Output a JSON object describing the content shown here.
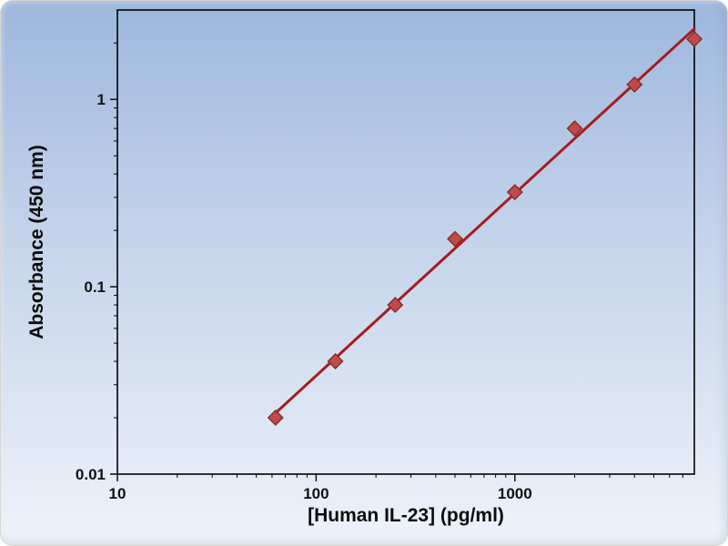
{
  "chart_data": {
    "type": "scatter",
    "xlabel": "[Human IL-23] (pg/ml)",
    "ylabel": "Absorbance (450 nm)",
    "x_scale": "log",
    "y_scale": "log",
    "xlim": [
      10,
      8000
    ],
    "ylim": [
      0.01,
      3
    ],
    "x_ticks": [
      10,
      100,
      1000
    ],
    "y_ticks": [
      0.01,
      0.1,
      1
    ],
    "x": [
      62.5,
      125,
      250,
      500,
      1000,
      2000,
      4000,
      8000
    ],
    "y": [
      0.02,
      0.04,
      0.08,
      0.18,
      0.32,
      0.7,
      1.2,
      2.1
    ],
    "marker": "diamond",
    "marker_color": "#bf4a47",
    "marker_edge_color": "#822e2b",
    "line_color": "#a61c20",
    "trendline": true,
    "grid": false,
    "legend": "none",
    "plot_border_color": "#000000",
    "background_gradient": [
      "#9db7dd",
      "#c3d3ea",
      "#eef3fa"
    ]
  }
}
